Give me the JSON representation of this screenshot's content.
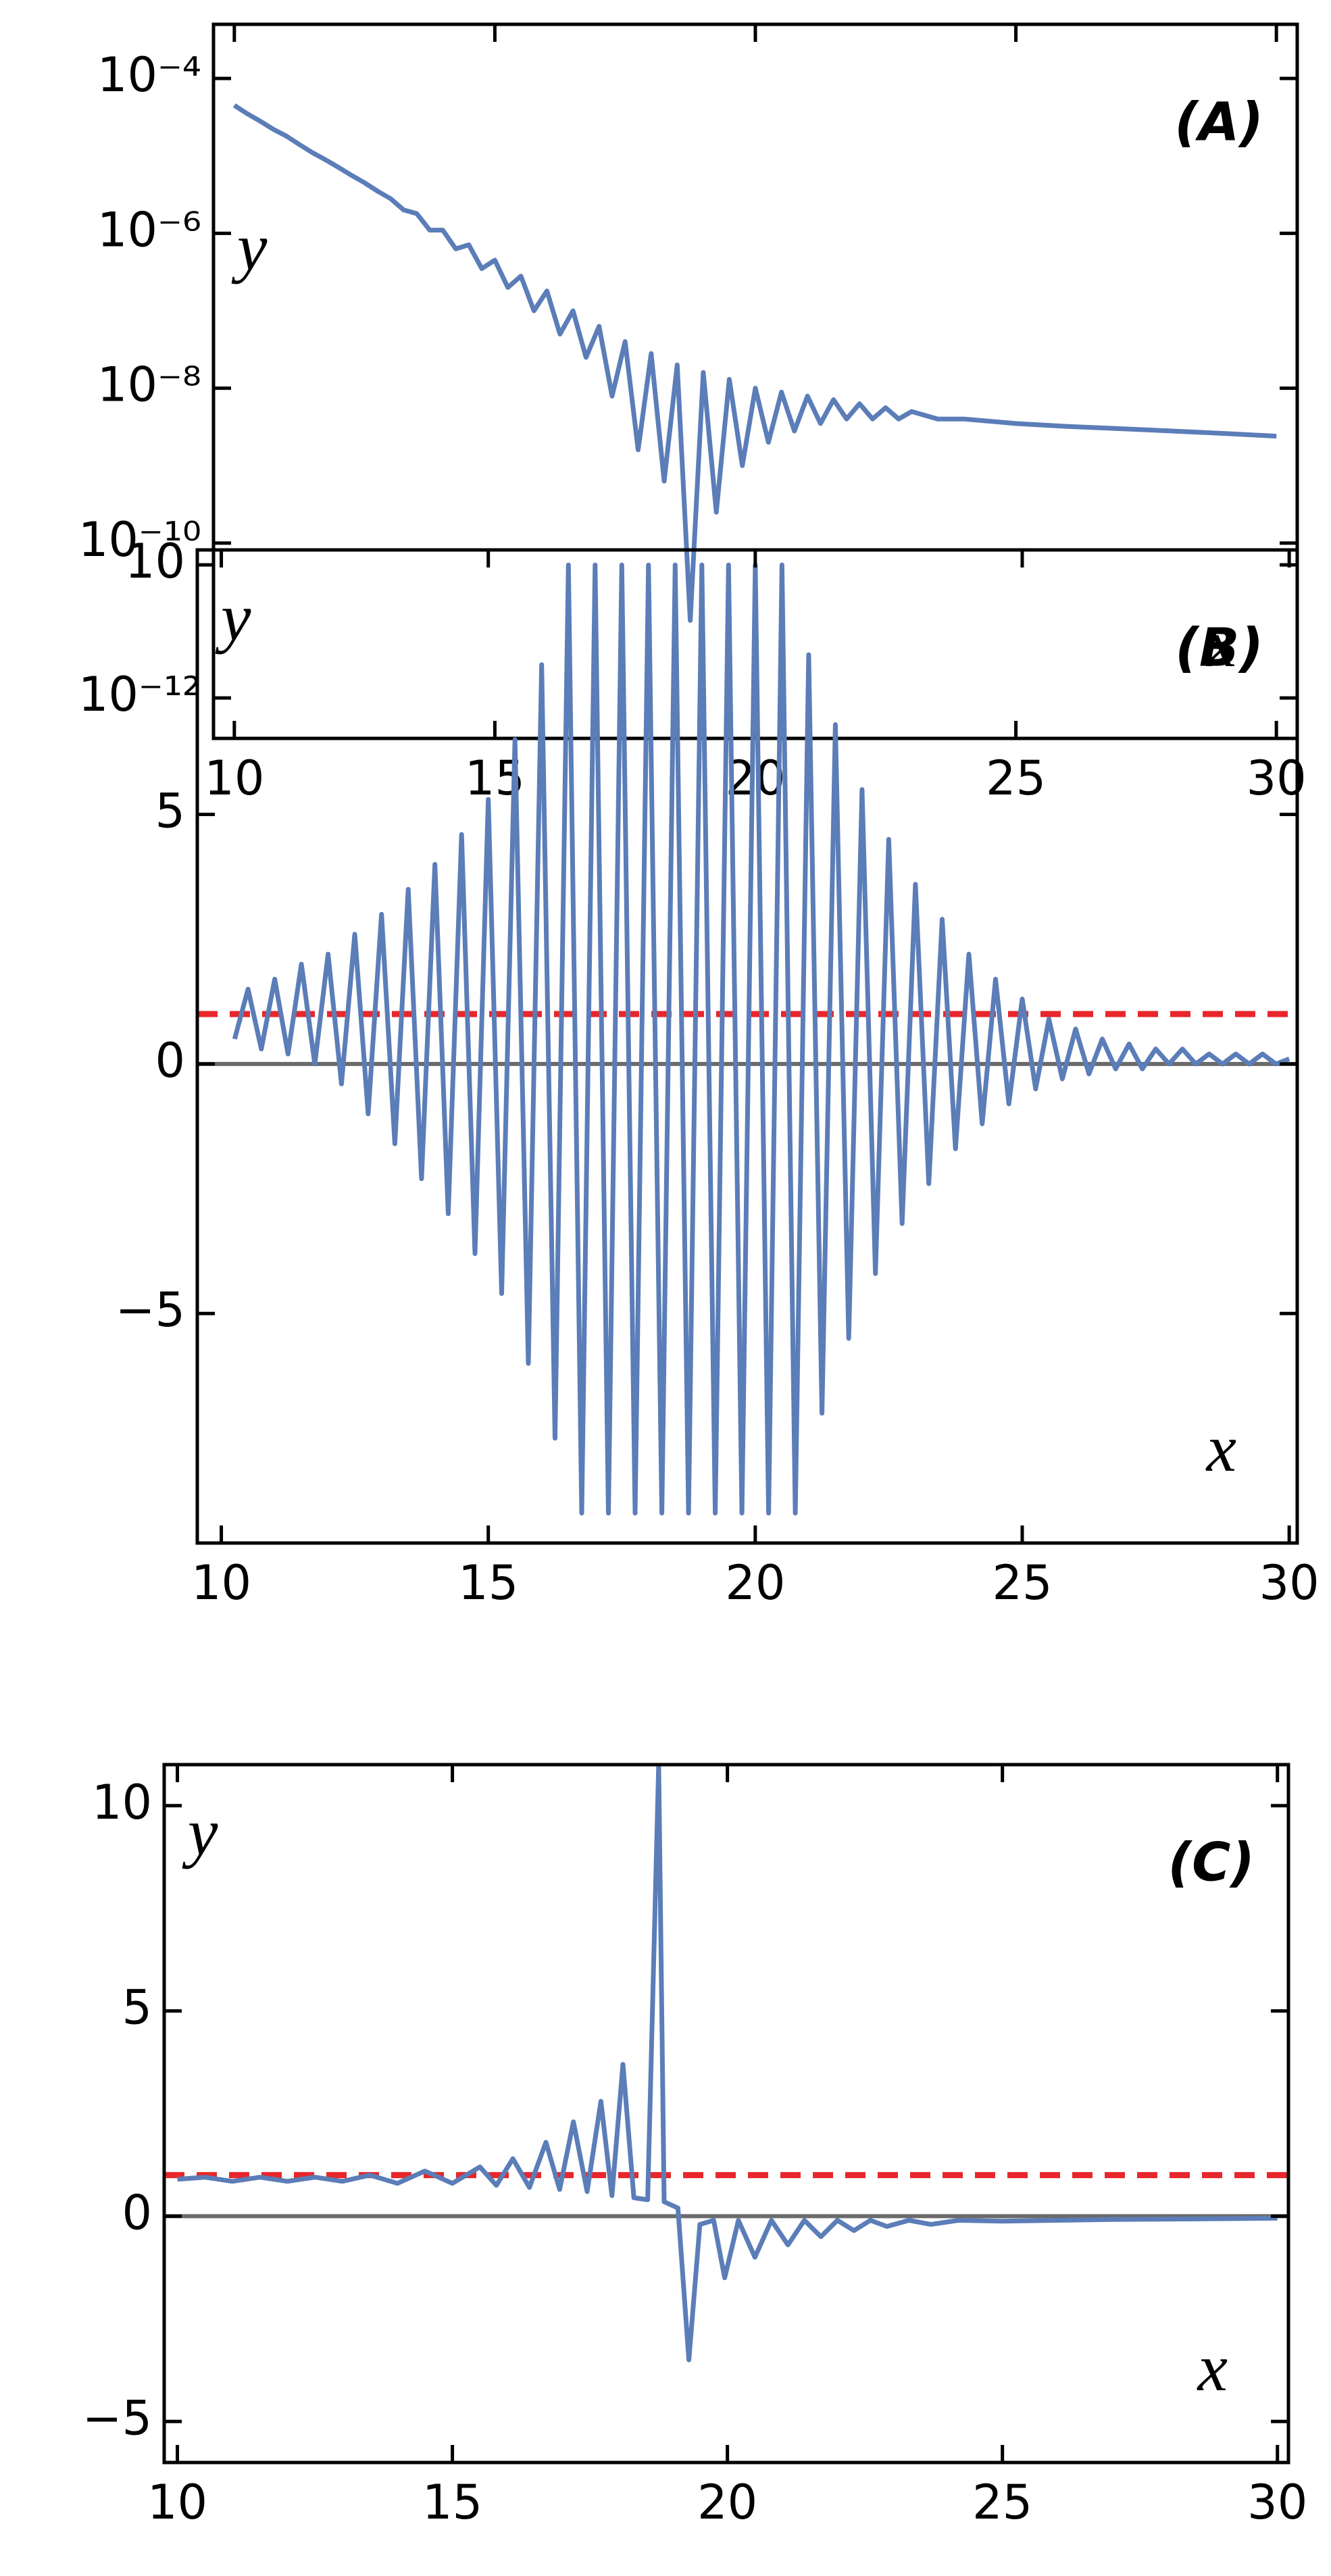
{
  "chart_data": [
    {
      "type": "line",
      "label": "(A)",
      "xlabel": "x",
      "ylabel": "y",
      "yscale": "log",
      "xlim": [
        9.6,
        30.4
      ],
      "ylim": [
        3e-13,
        0.0005
      ],
      "xticks": [
        10,
        15,
        20,
        25,
        30
      ],
      "yticks": [
        {
          "value": 0.0001,
          "label": "10⁻⁴"
        },
        {
          "value": 1e-06,
          "label": "10⁻⁶"
        },
        {
          "value": 1e-08,
          "label": "10⁻⁸"
        },
        {
          "value": 1e-10,
          "label": "10⁻¹⁰"
        },
        {
          "value": 1e-12,
          "label": "10⁻¹²"
        }
      ],
      "series": [
        {
          "color": "#5b7db8",
          "x": [
            10,
            10.25,
            10.5,
            10.75,
            11,
            11.25,
            11.5,
            11.75,
            12,
            12.25,
            12.5,
            12.75,
            13,
            13.25,
            13.5,
            13.75,
            14,
            14.25,
            14.5,
            14.75,
            15,
            15.25,
            15.5,
            15.75,
            16,
            16.25,
            16.5,
            16.75,
            17,
            17.25,
            17.5,
            17.75,
            18,
            18.25,
            18.5,
            18.75,
            19,
            19.25,
            19.5,
            19.75,
            20,
            20.25,
            20.5,
            20.75,
            21,
            21.25,
            21.5,
            21.75,
            22,
            22.25,
            22.5,
            22.75,
            23,
            23.5,
            24,
            25,
            26,
            27,
            28,
            29,
            30
          ],
          "values": [
            4.5e-05,
            3.5e-05,
            2.8e-05,
            2.2e-05,
            1.8e-05,
            1.4e-05,
            1.1e-05,
            8.9e-06,
            7.1e-06,
            5.6e-06,
            4.5e-06,
            3.5e-06,
            2.8e-06,
            2e-06,
            1.8e-06,
            1.1e-06,
            1.1e-06,
            6.3e-07,
            7.1e-07,
            3.5e-07,
            4.5e-07,
            2e-07,
            2.8e-07,
            1e-07,
            1.8e-07,
            5e-08,
            1e-07,
            2.5e-08,
            6.3e-08,
            7.9e-09,
            4e-08,
            1.6e-09,
            2.8e-08,
            6.3e-10,
            2e-08,
            1e-11,
            1.6e-08,
            2.5e-10,
            1.3e-08,
            1e-09,
            1e-08,
            2e-09,
            8.9e-09,
            2.8e-09,
            7.9e-09,
            3.5e-09,
            7.1e-09,
            4e-09,
            6.3e-09,
            4e-09,
            5.6e-09,
            4e-09,
            5e-09,
            4e-09,
            4e-09,
            3.5e-09,
            3.2e-09,
            3e-09,
            2.8e-09,
            2.6e-09,
            2.4e-09
          ]
        }
      ]
    },
    {
      "type": "line",
      "label": "(B)",
      "xlabel": "x",
      "ylabel": "y",
      "xlim": [
        9.55,
        30.15
      ],
      "ylim": [
        -9.6,
        10.3
      ],
      "xticks": [
        10,
        15,
        20,
        25,
        30
      ],
      "yticks": [
        {
          "value": -5,
          "label": "−5"
        },
        0,
        5,
        10
      ],
      "hlines": [
        {
          "value": 1,
          "color": "#e8262b",
          "style": "dashed"
        },
        {
          "value": 0,
          "color": "#6a6a6a",
          "style": "solid"
        }
      ],
      "series": [
        {
          "color": "#5b7db8",
          "x": [
            10.25,
            10.5,
            10.75,
            11,
            11.25,
            11.5,
            11.75,
            12,
            12.25,
            12.5,
            12.75,
            13,
            13.25,
            13.5,
            13.75,
            14,
            14.25,
            14.5,
            14.75,
            15,
            15.25,
            15.5,
            15.75,
            16,
            16.25,
            16.5,
            16.75,
            17,
            17.25,
            17.5,
            17.75,
            18,
            18.25,
            18.5,
            18.75,
            19,
            19.25,
            19.5,
            19.75,
            20,
            20.25,
            20.5,
            20.75,
            21,
            21.25,
            21.5,
            21.75,
            22,
            22.25,
            22.5,
            22.75,
            23,
            23.25,
            23.5,
            23.75,
            24,
            24.25,
            24.5,
            24.75,
            25,
            25.25,
            25.5,
            25.75,
            26,
            26.25,
            26.5,
            26.75,
            27,
            27.25,
            27.5,
            27.75,
            28,
            28.25,
            28.5,
            28.75,
            29,
            29.25,
            29.5,
            29.75,
            30
          ],
          "values": [
            0.5,
            1.5,
            0.3,
            1.7,
            0.2,
            2.0,
            0.0,
            2.2,
            -0.4,
            2.6,
            -1.0,
            3.0,
            -1.6,
            3.5,
            -2.3,
            4.0,
            -3.0,
            4.6,
            -3.8,
            5.3,
            -4.6,
            6.5,
            -6.0,
            8.0,
            -7.5,
            10,
            -9,
            10,
            -9,
            10,
            -9,
            10,
            -9,
            10,
            -9,
            10,
            -9,
            10,
            -9,
            10,
            -9,
            10,
            -9,
            8.2,
            -7.0,
            6.8,
            -5.5,
            5.5,
            -4.2,
            4.5,
            -3.2,
            3.6,
            -2.4,
            2.9,
            -1.7,
            2.2,
            -1.2,
            1.7,
            -0.8,
            1.3,
            -0.5,
            0.9,
            -0.3,
            0.7,
            -0.2,
            0.5,
            -0.1,
            0.4,
            -0.1,
            0.3,
            0.0,
            0.3,
            0.0,
            0.2,
            0.0,
            0.2,
            0.0,
            0.2,
            0.0,
            0.1
          ]
        }
      ]
    },
    {
      "type": "line",
      "label": "(C)",
      "xlabel": "x",
      "ylabel": "y",
      "xlim": [
        9.76,
        30.2
      ],
      "ylim": [
        -6,
        11
      ],
      "xticks": [
        10,
        15,
        20,
        25,
        30
      ],
      "yticks": [
        {
          "value": -5,
          "label": "−5"
        },
        0,
        5,
        10
      ],
      "hlines": [
        {
          "value": 1,
          "color": "#e8262b",
          "style": "dashed"
        },
        {
          "value": 0,
          "color": "#6a6a6a",
          "style": "solid"
        }
      ],
      "series": [
        {
          "color": "#5b7db8",
          "x": [
            10,
            10.5,
            11,
            11.5,
            12,
            12.5,
            13,
            13.5,
            14,
            14.5,
            15,
            15.5,
            15.8,
            16.1,
            16.4,
            16.7,
            16.95,
            17.2,
            17.45,
            17.7,
            17.9,
            18.1,
            18.3,
            18.55,
            18.75,
            18.85,
            19.1,
            19.3,
            19.5,
            19.75,
            19.95,
            20.2,
            20.5,
            20.8,
            21.1,
            21.4,
            21.7,
            22,
            22.3,
            22.6,
            22.9,
            23.3,
            23.7,
            24.2,
            25,
            26,
            27,
            28,
            29,
            30
          ],
          "values": [
            0.9,
            0.95,
            0.85,
            0.95,
            0.85,
            0.95,
            0.85,
            1.0,
            0.8,
            1.1,
            0.8,
            1.2,
            0.75,
            1.4,
            0.7,
            1.8,
            0.65,
            2.3,
            0.6,
            2.8,
            0.5,
            3.7,
            0.45,
            0.4,
            11,
            0.35,
            0.2,
            -3.5,
            -0.2,
            -0.1,
            -1.5,
            -0.1,
            -1.0,
            -0.1,
            -0.7,
            -0.1,
            -0.5,
            -0.1,
            -0.35,
            -0.1,
            -0.25,
            -0.1,
            -0.2,
            -0.1,
            -0.12,
            -0.1,
            -0.08,
            -0.07,
            -0.06,
            -0.05
          ]
        }
      ]
    }
  ]
}
